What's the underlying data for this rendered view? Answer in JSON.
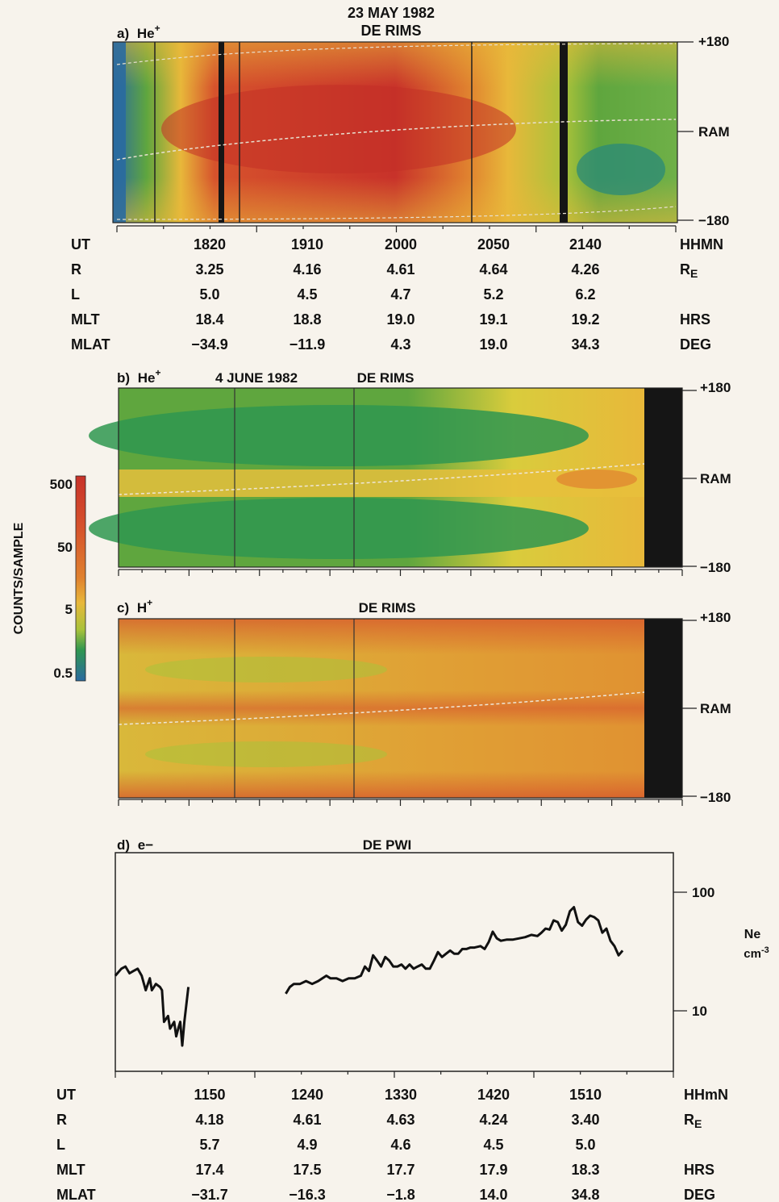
{
  "header": {
    "date": "23 MAY 1982",
    "instrument": "DE RIMS"
  },
  "colorbar": {
    "label": "COUNTS/SAMPLE",
    "ticks": [
      "500",
      "50",
      "5",
      "0.5"
    ],
    "colors": [
      "#c8322a",
      "#d6522c",
      "#e0822f",
      "#e8b83a",
      "#d9cc3c",
      "#a9c23a",
      "#5fa63e",
      "#2f9650",
      "#2a8a78",
      "#2a6aa0"
    ]
  },
  "chart_data": [
    {
      "type": "heatmap",
      "panel": "a)",
      "species": "He",
      "species_sup": "+",
      "title": "DE RIMS",
      "date": "23 MAY 1982",
      "yticks": [
        "+180",
        "RAM",
        "−180"
      ],
      "x_units": "HHMN",
      "table": {
        "rows": [
          {
            "label": "UT",
            "values": [
              "1820",
              "1910",
              "2000",
              "2050",
              "2140"
            ],
            "unit": "HHMN",
            "unit_sub": ""
          },
          {
            "label": "R",
            "values": [
              "3.25",
              "4.16",
              "4.61",
              "4.64",
              "4.26"
            ],
            "unit": "R",
            "unit_sub": "E"
          },
          {
            "label": "L",
            "values": [
              "5.0",
              "4.5",
              "4.7",
              "5.2",
              "6.2"
            ],
            "unit": "",
            "unit_sub": ""
          },
          {
            "label": "MLT",
            "values": [
              "18.4",
              "18.8",
              "19.0",
              "19.1",
              "19.2"
            ],
            "unit": "HRS",
            "unit_sub": ""
          },
          {
            "label": "MLAT",
            "values": [
              "−34.9",
              "−11.9",
              "4.3",
              "19.0",
              "34.3"
            ],
            "unit": "DEG",
            "unit_sub": ""
          }
        ]
      }
    },
    {
      "type": "heatmap",
      "panel": "b)",
      "species": "He",
      "species_sup": "+",
      "title": "DE RIMS",
      "date": "4 JUNE 1982",
      "yticks": [
        "+180",
        "RAM",
        "−180"
      ]
    },
    {
      "type": "heatmap",
      "panel": "c)",
      "species": "H",
      "species_sup": "+",
      "title": "DE RIMS",
      "yticks": [
        "+180",
        "RAM",
        "−180"
      ]
    },
    {
      "type": "line",
      "panel": "d)",
      "species": "e−",
      "title": "DE PWI",
      "y_scale": "log",
      "ylim": [
        3,
        230
      ],
      "yticks": [
        "100",
        "10"
      ],
      "ylabel": "Ne",
      "ylabel_unit": "cm",
      "ylabel_exp": "-3",
      "xlim": [
        "11:20",
        "15:55"
      ],
      "series": [
        {
          "segments": [
            [
              [
                "11:20",
                20
              ],
              [
                "11:23",
                23
              ],
              [
                "11:25",
                24
              ],
              [
                "11:27",
                21
              ],
              [
                "11:29",
                22
              ],
              [
                "11:31",
                23
              ],
              [
                "11:33",
                20
              ],
              [
                "11:35",
                15
              ],
              [
                "11:37",
                19
              ],
              [
                "11:38",
                15
              ],
              [
                "11:40",
                17
              ],
              [
                "11:42",
                16
              ],
              [
                "11:43",
                15
              ],
              [
                "11:44",
                8
              ],
              [
                "11:46",
                9
              ],
              [
                "11:47",
                7
              ],
              [
                "11:49",
                8
              ],
              [
                "11:50",
                6
              ],
              [
                "11:51",
                7
              ],
              [
                "11:52",
                8
              ],
              [
                "11:53",
                5
              ],
              [
                "11:54",
                8
              ],
              [
                "11:56",
                16
              ]
            ],
            [
              [
                "12:44",
                14
              ],
              [
                "12:46",
                16
              ],
              [
                "12:48",
                17
              ],
              [
                "12:51",
                17
              ],
              [
                "12:54",
                18
              ],
              [
                "12:57",
                17
              ],
              [
                "13:00",
                18
              ],
              [
                "13:02",
                19
              ],
              [
                "13:04",
                20
              ],
              [
                "13:06",
                19
              ],
              [
                "13:09",
                19
              ],
              [
                "13:12",
                18
              ],
              [
                "13:15",
                19
              ],
              [
                "13:18",
                19
              ],
              [
                "13:21",
                20
              ],
              [
                "13:23",
                24
              ],
              [
                "13:25",
                22
              ],
              [
                "13:27",
                30
              ],
              [
                "13:29",
                27
              ],
              [
                "13:31",
                24
              ],
              [
                "13:33",
                29
              ],
              [
                "13:35",
                27
              ],
              [
                "13:37",
                24
              ],
              [
                "13:39",
                24
              ],
              [
                "13:41",
                25
              ],
              [
                "13:43",
                23
              ],
              [
                "13:45",
                25
              ],
              [
                "13:47",
                23
              ],
              [
                "13:49",
                24
              ],
              [
                "13:51",
                25
              ],
              [
                "13:53",
                23
              ],
              [
                "13:55",
                23
              ],
              [
                "13:57",
                27
              ],
              [
                "13:59",
                32
              ],
              [
                "14:01",
                29
              ],
              [
                "14:03",
                31
              ],
              [
                "14:05",
                33
              ],
              [
                "14:07",
                31
              ],
              [
                "14:09",
                31
              ],
              [
                "14:11",
                34
              ],
              [
                "14:13",
                34
              ],
              [
                "14:15",
                35
              ],
              [
                "14:17",
                35
              ],
              [
                "14:20",
                36
              ],
              [
                "14:22",
                34
              ],
              [
                "14:24",
                39
              ],
              [
                "14:26",
                48
              ],
              [
                "14:28",
                42
              ],
              [
                "14:30",
                40
              ],
              [
                "14:33",
                41
              ],
              [
                "14:36",
                41
              ],
              [
                "14:39",
                42
              ],
              [
                "14:42",
                43
              ],
              [
                "14:45",
                45
              ],
              [
                "14:48",
                44
              ],
              [
                "14:50",
                47
              ],
              [
                "14:52",
                51
              ],
              [
                "14:54",
                50
              ],
              [
                "14:56",
                60
              ],
              [
                "14:58",
                58
              ],
              [
                "15:00",
                49
              ],
              [
                "15:02",
                55
              ],
              [
                "15:04",
                72
              ],
              [
                "15:06",
                78
              ],
              [
                "15:08",
                58
              ],
              [
                "15:10",
                54
              ],
              [
                "15:12",
                61
              ],
              [
                "15:14",
                66
              ],
              [
                "15:16",
                64
              ],
              [
                "15:18",
                60
              ],
              [
                "15:20",
                47
              ],
              [
                "15:22",
                51
              ],
              [
                "15:24",
                40
              ],
              [
                "15:26",
                36
              ],
              [
                "15:28",
                30
              ],
              [
                "15:30",
                33
              ]
            ]
          ]
        }
      ],
      "table": {
        "rows": [
          {
            "label": "UT",
            "values": [
              "1150",
              "1240",
              "1330",
              "1420",
              "1510"
            ],
            "unit": "HHmN",
            "unit_sub": ""
          },
          {
            "label": "R",
            "values": [
              "4.18",
              "4.61",
              "4.63",
              "4.24",
              "3.40"
            ],
            "unit": "R",
            "unit_sub": "E"
          },
          {
            "label": "L",
            "values": [
              "5.7",
              "4.9",
              "4.6",
              "4.5",
              "5.0"
            ],
            "unit": "",
            "unit_sub": ""
          },
          {
            "label": "MLT",
            "values": [
              "17.4",
              "17.5",
              "17.7",
              "17.9",
              "18.3"
            ],
            "unit": "HRS",
            "unit_sub": ""
          },
          {
            "label": "MLAT",
            "values": [
              "−31.7",
              "−16.3",
              "−1.8",
              "14.0",
              "34.8"
            ],
            "unit": "DEG",
            "unit_sub": ""
          }
        ]
      }
    }
  ]
}
